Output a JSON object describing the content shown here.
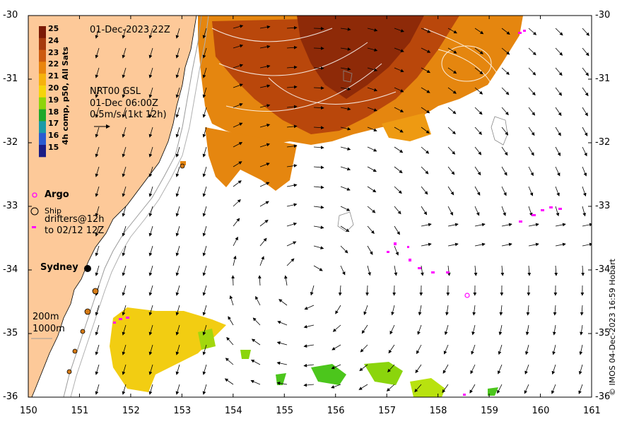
{
  "map": {
    "date_label": "01-Dec-2023 22Z",
    "product_label": [
      "NRT00 GSL",
      "01-Dec 06:00Z",
      "0.5m/s (1kt 12h)"
    ],
    "colorbar": {
      "title": "4h comp, p50, All Sats",
      "ticks": [
        "25",
        "24",
        "23",
        "22",
        "21",
        "20",
        "19",
        "18",
        "17",
        "16",
        "15"
      ],
      "colors": [
        "#7b1a06",
        "#a63a0d",
        "#cc5a10",
        "#e9850e",
        "#f6b20d",
        "#f5d40b",
        "#8fd40a",
        "#1fa82a",
        "#1b9aa8",
        "#2c5bd0",
        "#1b1e86"
      ]
    },
    "legend": {
      "argo": "Argo",
      "ship": "Ship",
      "drifters": [
        "drifters@12h",
        "to 02/12 12Z"
      ]
    },
    "city": "Sydney",
    "depth_labels": [
      "200m",
      "1000m"
    ],
    "x_ticks": [
      "150",
      "151",
      "152",
      "153",
      "154",
      "155",
      "156",
      "157",
      "158",
      "159",
      "160",
      "161"
    ],
    "y_ticks": [
      "-30",
      "-31",
      "-32",
      "-33",
      "-34",
      "-35",
      "-36"
    ],
    "credit": "© IMOS 04-Dec-2023 16:59 Hobart",
    "colors": {
      "land": "#fdc999",
      "sst_warm": "#c2500c",
      "sst_mid": "#e88a10",
      "sst_cool": "#f1cd14",
      "sst_green": "#8bd50c",
      "argo": "#ff00ff"
    }
  }
}
